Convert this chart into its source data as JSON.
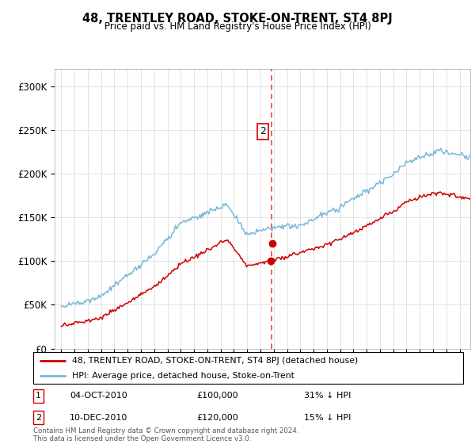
{
  "title": "48, TRENTLEY ROAD, STOKE-ON-TRENT, ST4 8PJ",
  "subtitle": "Price paid vs. HM Land Registry's House Price Index (HPI)",
  "legend_line1": "48, TRENTLEY ROAD, STOKE-ON-TRENT, ST4 8PJ (detached house)",
  "legend_line2": "HPI: Average price, detached house, Stoke-on-Trent",
  "transaction1_date": "04-OCT-2010",
  "transaction1_price": "£100,000",
  "transaction1_hpi": "31% ↓ HPI",
  "transaction2_date": "10-DEC-2010",
  "transaction2_price": "£120,000",
  "transaction2_hpi": "15% ↓ HPI",
  "footer": "Contains HM Land Registry data © Crown copyright and database right 2024.\nThis data is licensed under the Open Government Licence v3.0.",
  "hpi_color": "#7ab8d8",
  "price_color": "#cc0000",
  "vline_color": "#ee4444",
  "ylim": [
    0,
    320000
  ],
  "yticks": [
    0,
    50000,
    100000,
    150000,
    200000,
    250000,
    300000
  ],
  "ytick_labels": [
    "£0",
    "£50K",
    "£100K",
    "£150K",
    "£200K",
    "£250K",
    "£300K"
  ],
  "t1_year": 2010.75,
  "t1_price": 100000,
  "t2_year": 2010.92,
  "t2_price": 120000,
  "vline_x": 2010.83
}
